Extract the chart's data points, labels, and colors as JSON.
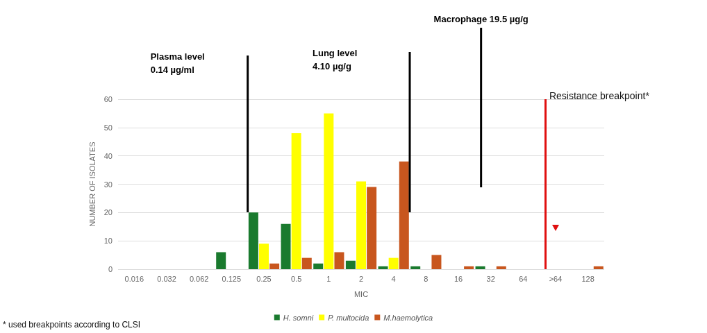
{
  "chart_data": {
    "type": "bar",
    "xlabel": "MIC",
    "ylabel": "NUMBER OF ISOLATES",
    "categories": [
      "0.016",
      "0.032",
      "0.062",
      "0.125",
      "0.25",
      "0.5",
      "1",
      "2",
      "4",
      "8",
      "16",
      "32",
      "64",
      ">64",
      "128"
    ],
    "series": [
      {
        "name": "H. somni",
        "color": "#1a7a2e",
        "values": [
          0,
          0,
          0,
          6,
          20,
          16,
          2,
          3,
          1,
          1,
          0,
          1,
          0,
          0,
          0
        ]
      },
      {
        "name": "P. multocida",
        "color": "#ffff00",
        "values": [
          0,
          0,
          0,
          0,
          9,
          48,
          55,
          31,
          4,
          0,
          0,
          0,
          0,
          0,
          0
        ]
      },
      {
        "name": "M.haemolytica",
        "color": "#c8561e",
        "values": [
          0,
          0,
          0,
          0,
          2,
          4,
          6,
          29,
          38,
          5,
          1,
          1,
          0,
          0,
          1
        ]
      }
    ],
    "ylim": [
      0,
      60
    ],
    "yticks": [
      0,
      10,
      20,
      30,
      40,
      50,
      60
    ],
    "grid": "y",
    "legend": "bottom",
    "ref_lines": [
      {
        "axis": "x",
        "value": ">64",
        "label": "Resistance breakpoint*",
        "color": "#e01010"
      }
    ],
    "annotations": [
      "Plasma level\n0.14 µg/ml",
      "Lung level\n4.10 µg/g",
      "Macrophage 19.5 µg/g",
      "* used breakpoints according to CLSI"
    ]
  }
}
